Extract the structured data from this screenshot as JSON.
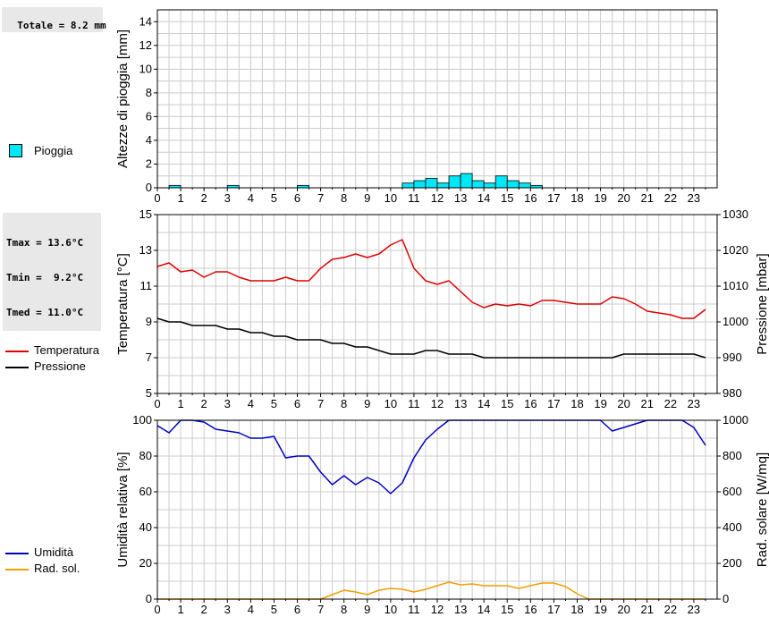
{
  "stats": {
    "rain_total": "Totale = 8.2 mm",
    "tmax": "Tmax = 13.6°C",
    "tmin": "Tmin =  9.2°C",
    "tmed": "Tmed = 11.0°C"
  },
  "colors": {
    "rain_fill": "#00e8f8",
    "temperature": "#e00000",
    "pressure": "#000000",
    "humidity": "#0000c0",
    "radiation": "#f0a000",
    "grid": "#cccccc"
  },
  "legends": {
    "rain": "Pioggia",
    "temperature": "Temperatura",
    "pressure": "Pressione",
    "humidity": "Umidità",
    "radiation": "Rad. sol."
  },
  "chart_data": [
    {
      "type": "bar",
      "ylabel": "Altezze di pioggia [mm]",
      "xlim": [
        0,
        24
      ],
      "x_ticks": [
        "0",
        "1",
        "2",
        "3",
        "4",
        "5",
        "6",
        "7",
        "8",
        "9",
        "10",
        "11",
        "12",
        "13",
        "14",
        "15",
        "16",
        "17",
        "18",
        "19",
        "20",
        "21",
        "22",
        "23"
      ],
      "ylim": [
        0,
        15
      ],
      "y_ticks": [
        0,
        2,
        4,
        6,
        8,
        10,
        12,
        14
      ],
      "grid": true,
      "bar_width_h": 0.5,
      "x": [
        0.5,
        3,
        6,
        10.5,
        11,
        11.5,
        12,
        12.5,
        13,
        13.5,
        14,
        14.5,
        15,
        15.5,
        16
      ],
      "values": [
        0.2,
        0.2,
        0.2,
        0.4,
        0.6,
        0.8,
        0.4,
        1.0,
        1.2,
        0.6,
        0.4,
        1.0,
        0.6,
        0.4,
        0.2
      ]
    },
    {
      "type": "line",
      "ylabel": "Temperatura [°C]",
      "y2label": "Pressione [mbar]",
      "xlim": [
        0,
        24
      ],
      "x_ticks": [
        "0",
        "1",
        "2",
        "3",
        "4",
        "5",
        "6",
        "7",
        "8",
        "9",
        "10",
        "11",
        "12",
        "13",
        "14",
        "15",
        "16",
        "17",
        "18",
        "19",
        "20",
        "21",
        "22",
        "23"
      ],
      "ylim": [
        5,
        15
      ],
      "y_ticks": [
        5,
        7,
        9,
        11,
        13,
        15
      ],
      "y2lim": [
        980,
        1030
      ],
      "y2_ticks": [
        980,
        990,
        1000,
        1010,
        1020,
        1030
      ],
      "grid": true,
      "series": [
        {
          "name": "Temperatura",
          "axis": "left",
          "x": [
            0,
            0.5,
            1,
            1.5,
            2,
            2.5,
            3,
            3.5,
            4,
            4.5,
            5,
            5.5,
            6,
            6.5,
            7,
            7.5,
            8,
            8.5,
            9,
            9.5,
            10,
            10.5,
            11,
            11.5,
            12,
            12.5,
            13,
            13.5,
            14,
            14.5,
            15,
            15.5,
            16,
            16.5,
            17,
            17.5,
            18,
            18.5,
            19,
            19.5,
            20,
            20.5,
            21,
            21.5,
            22,
            22.5,
            23,
            23.5
          ],
          "values": [
            12.1,
            12.3,
            11.8,
            11.9,
            11.5,
            11.8,
            11.8,
            11.5,
            11.3,
            11.3,
            11.3,
            11.5,
            11.3,
            11.3,
            12.0,
            12.5,
            12.6,
            12.8,
            12.6,
            12.8,
            13.3,
            13.6,
            12.0,
            11.3,
            11.1,
            11.3,
            10.7,
            10.1,
            9.8,
            10.0,
            9.9,
            10.0,
            9.9,
            10.2,
            10.2,
            10.1,
            10.0,
            10.0,
            10.0,
            10.4,
            10.3,
            10.0,
            9.6,
            9.5,
            9.4,
            9.2,
            9.2,
            9.7
          ]
        },
        {
          "name": "Pressione",
          "axis": "right",
          "x": [
            0,
            0.5,
            1,
            1.5,
            2,
            2.5,
            3,
            3.5,
            4,
            4.5,
            5,
            5.5,
            6,
            6.5,
            7,
            7.5,
            8,
            8.5,
            9,
            9.5,
            10,
            10.5,
            11,
            11.5,
            12,
            12.5,
            13,
            13.5,
            14,
            14.5,
            15,
            15.5,
            16,
            16.5,
            17,
            17.5,
            18,
            18.5,
            19,
            19.5,
            20,
            20.5,
            21,
            21.5,
            22,
            22.5,
            23,
            23.5
          ],
          "values": [
            1001,
            1000,
            1000,
            999,
            999,
            999,
            998,
            998,
            997,
            997,
            996,
            996,
            995,
            995,
            995,
            994,
            994,
            993,
            993,
            992,
            991,
            991,
            991,
            992,
            992,
            991,
            991,
            991,
            990,
            990,
            990,
            990,
            990,
            990,
            990,
            990,
            990,
            990,
            990,
            990,
            991,
            991,
            991,
            991,
            991,
            991,
            991,
            990
          ]
        }
      ]
    },
    {
      "type": "line",
      "ylabel": "Umidità relativa [%]",
      "y2label": "Rad. solare [W/mq]",
      "xlim": [
        0,
        24
      ],
      "x_ticks": [
        "0",
        "1",
        "2",
        "3",
        "4",
        "5",
        "6",
        "7",
        "8",
        "9",
        "10",
        "11",
        "12",
        "13",
        "14",
        "15",
        "16",
        "17",
        "18",
        "19",
        "20",
        "21",
        "22",
        "23"
      ],
      "ylim": [
        0,
        100
      ],
      "y_ticks": [
        0,
        20,
        40,
        60,
        80,
        100
      ],
      "y2lim": [
        0,
        1000
      ],
      "y2_ticks": [
        0,
        200,
        400,
        600,
        800,
        1000
      ],
      "grid": true,
      "series": [
        {
          "name": "Umidità",
          "axis": "left",
          "x": [
            0,
            0.5,
            1,
            1.5,
            2,
            2.5,
            3,
            3.5,
            4,
            4.5,
            5,
            5.5,
            6,
            6.5,
            7,
            7.5,
            8,
            8.5,
            9,
            9.5,
            10,
            10.5,
            11,
            11.5,
            12,
            12.5,
            13,
            13.5,
            14,
            14.5,
            15,
            15.5,
            16,
            16.5,
            17,
            17.5,
            18,
            18.5,
            19,
            19.5,
            20,
            20.5,
            21,
            21.5,
            22,
            22.5,
            23,
            23.5
          ],
          "values": [
            97,
            93,
            100,
            100,
            99,
            95,
            94,
            93,
            90,
            90,
            91,
            79,
            80,
            80,
            71,
            64,
            69,
            64,
            68,
            65,
            59,
            65,
            79,
            89,
            95,
            100,
            100,
            100,
            100,
            100,
            100,
            100,
            100,
            100,
            100,
            100,
            100,
            100,
            100,
            94,
            96,
            98,
            100,
            100,
            100,
            100,
            96,
            86
          ]
        },
        {
          "name": "Rad. sol.",
          "axis": "right",
          "x": [
            0,
            0.5,
            1,
            1.5,
            2,
            2.5,
            3,
            3.5,
            4,
            4.5,
            5,
            5.5,
            6,
            6.5,
            7,
            7.5,
            8,
            8.5,
            9,
            9.5,
            10,
            10.5,
            11,
            11.5,
            12,
            12.5,
            13,
            13.5,
            14,
            14.5,
            15,
            15.5,
            16,
            16.5,
            17,
            17.5,
            18,
            18.5,
            19,
            19.5,
            20,
            20.5,
            21,
            21.5,
            22,
            22.5,
            23,
            23.5
          ],
          "values": [
            0,
            0,
            0,
            0,
            0,
            0,
            0,
            0,
            0,
            0,
            0,
            0,
            0,
            0,
            0,
            25,
            50,
            40,
            25,
            50,
            60,
            55,
            40,
            55,
            75,
            95,
            80,
            85,
            75,
            75,
            75,
            60,
            75,
            90,
            90,
            70,
            30,
            0,
            0,
            0,
            0,
            0,
            0,
            0,
            0,
            0,
            0,
            0
          ]
        }
      ]
    }
  ]
}
